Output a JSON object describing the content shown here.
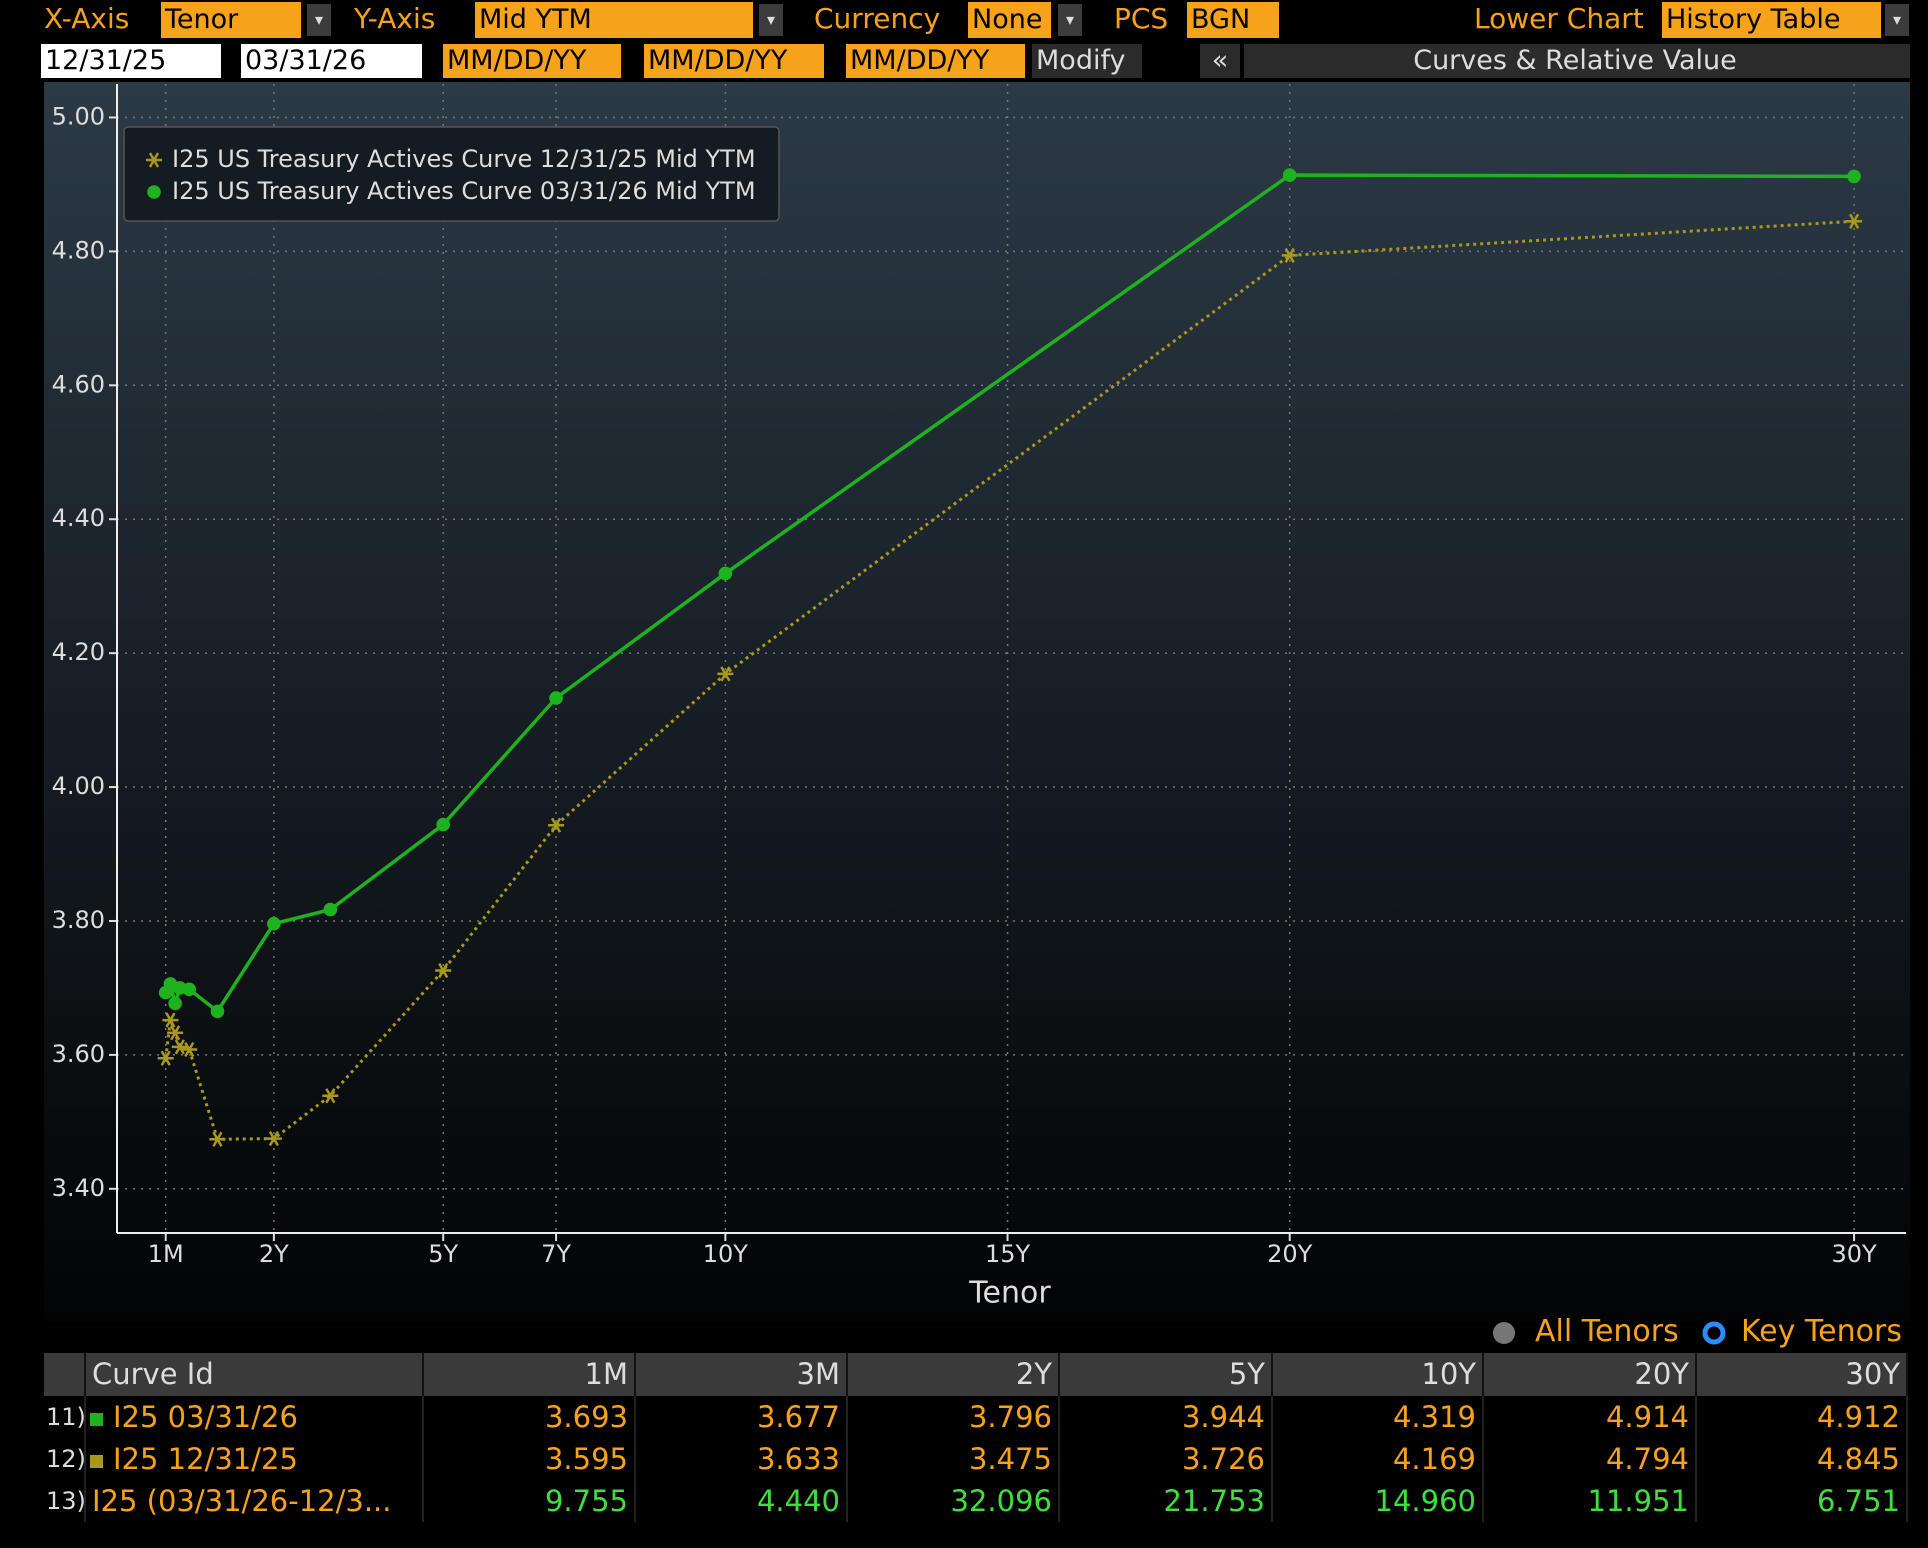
{
  "toolbar": {
    "x_axis_label": "X-Axis",
    "x_axis_value": "Tenor",
    "y_axis_label": "Y-Axis",
    "y_axis_value": "Mid YTM",
    "currency_label": "Currency",
    "currency_value": "None",
    "pcs_label": "PCS",
    "pcs_value": "BGN",
    "lower_chart_label": "Lower Chart",
    "lower_chart_value": "History Table"
  },
  "dates": [
    "12/31/25",
    "03/31/26",
    "MM/DD/YY",
    "MM/DD/YY",
    "MM/DD/YY"
  ],
  "modify": "Modify",
  "collapse": "«",
  "panel_title": "Curves & Relative Value",
  "chart_data": {
    "type": "line",
    "xlabel": "Tenor",
    "x": [
      0.083,
      0.167,
      0.25,
      0.333,
      0.5,
      1,
      2,
      3,
      5,
      7,
      10,
      20,
      30
    ],
    "series": [
      {
        "name": "I25 US Treasury Actives Curve 12/31/25 Mid YTM",
        "color": "#a8981e",
        "marker": "star",
        "line": "dotted",
        "values": [
          3.595,
          3.652,
          3.633,
          3.612,
          3.608,
          3.474,
          3.475,
          3.539,
          3.726,
          3.943,
          4.169,
          4.794,
          4.845
        ]
      },
      {
        "name": "I25 US Treasury Actives Curve 03/31/26 Mid YTM",
        "color": "#1fb21f",
        "marker": "circle",
        "line": "solid",
        "values": [
          3.693,
          3.706,
          3.677,
          3.7,
          3.698,
          3.665,
          3.796,
          3.817,
          3.944,
          4.133,
          4.319,
          4.914,
          4.912
        ]
      }
    ],
    "xlim": [
      -0.78,
      30.92
    ],
    "ylim": [
      3.334,
      5.05
    ],
    "xticks": [
      {
        "value": 0.083,
        "label": "1M"
      },
      {
        "value": 2,
        "label": "2Y"
      },
      {
        "value": 5,
        "label": "5Y"
      },
      {
        "value": 7,
        "label": "7Y"
      },
      {
        "value": 10,
        "label": "10Y"
      },
      {
        "value": 15,
        "label": "15Y"
      },
      {
        "value": 20,
        "label": "20Y"
      },
      {
        "value": 30,
        "label": "30Y"
      }
    ],
    "yticks": [
      {
        "value": 3.4,
        "label": "3.40"
      },
      {
        "value": 3.6,
        "label": "3.60"
      },
      {
        "value": 3.8,
        "label": "3.80"
      },
      {
        "value": 4,
        "label": "4.00"
      },
      {
        "value": 4.2,
        "label": "4.20"
      },
      {
        "value": 4.4,
        "label": "4.40"
      },
      {
        "value": 4.6,
        "label": "4.60"
      },
      {
        "value": 4.8,
        "label": "4.80"
      },
      {
        "value": 5,
        "label": "5.00"
      }
    ],
    "grid": true,
    "legend": "top-left"
  },
  "tenor_options": [
    "All Tenors",
    "Key Tenors"
  ],
  "table": {
    "columns": [
      "Curve Id",
      "1M",
      "3M",
      "2Y",
      "5Y",
      "10Y",
      "20Y",
      "30Y"
    ],
    "rows": [
      {
        "index": "11)",
        "curve": "I25 03/31/26",
        "values": [
          "3.693",
          "3.677",
          "3.796",
          "3.944",
          "4.319",
          "4.914",
          "4.912"
        ]
      },
      {
        "index": "12)",
        "curve": "I25 12/31/25",
        "values": [
          "3.595",
          "3.633",
          "3.475",
          "3.726",
          "4.169",
          "4.794",
          "4.845"
        ]
      },
      {
        "index": "13)",
        "curve": "I25 (03/31/26-12/3...",
        "values": [
          "9.755",
          "4.440",
          "32.096",
          "21.753",
          "14.960",
          "11.951",
          "6.751"
        ]
      }
    ]
  }
}
